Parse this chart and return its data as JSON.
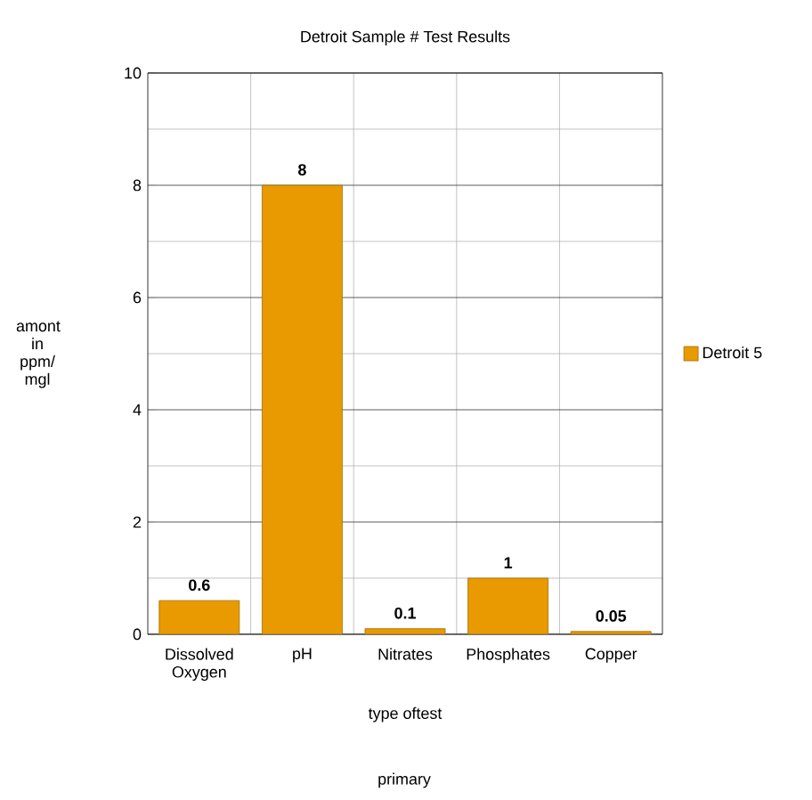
{
  "chart_data": {
    "type": "bar",
    "title": "Detroit Sample # Test Results",
    "xlabel": "type oftest",
    "ylabel": "amont in ppm/ mgl",
    "annotations": [
      "primary"
    ],
    "categories": [
      "Dissolved Oxygen",
      "pH",
      "Nitrates",
      "Phosphates",
      "Copper"
    ],
    "series": [
      {
        "name": "Detroit 5",
        "color": "#e89a00",
        "values": [
          0.6,
          8,
          0.1,
          1,
          0.05
        ]
      }
    ],
    "ylim": [
      0,
      10
    ],
    "yticks": [
      0,
      2,
      4,
      6,
      8,
      10
    ],
    "grid": true,
    "legend": "right",
    "data_labels": true
  }
}
